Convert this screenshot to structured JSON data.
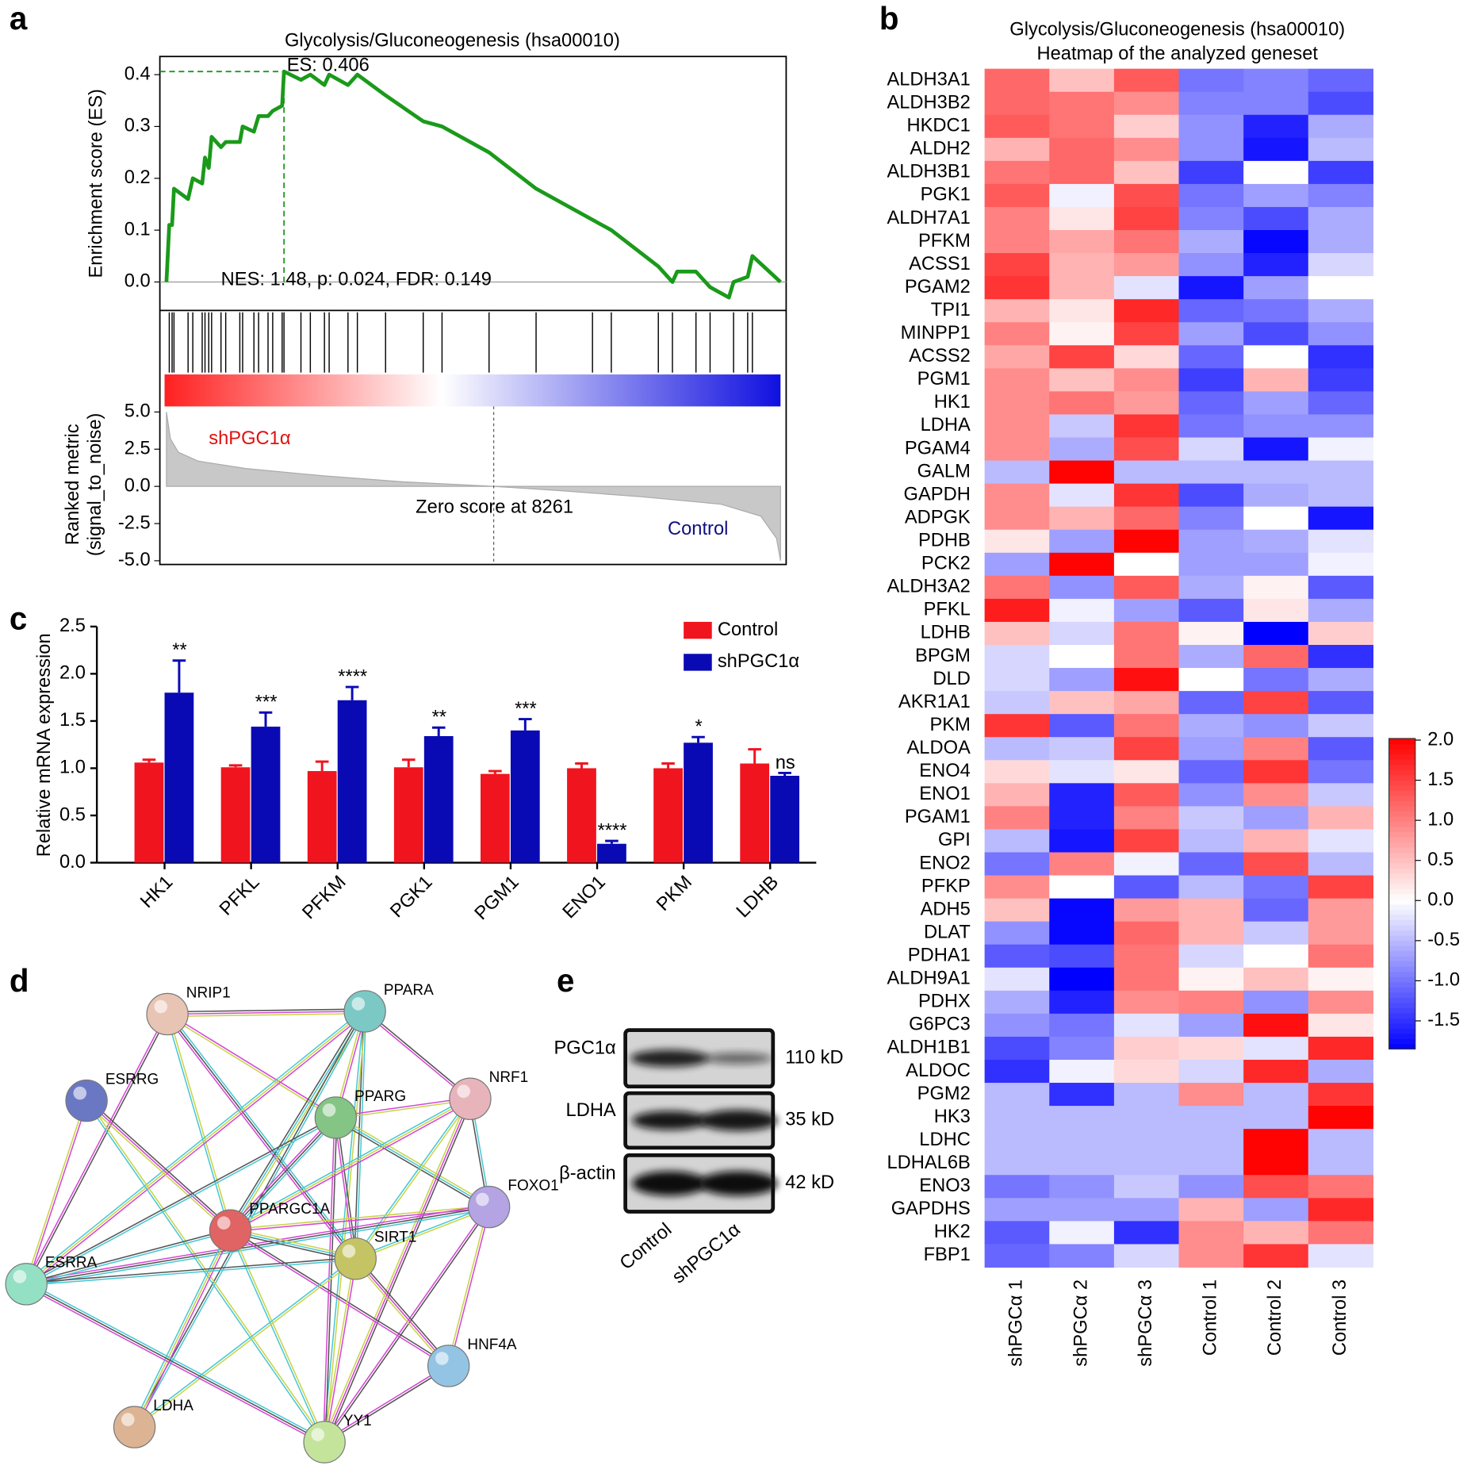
{
  "panels": [
    "a",
    "b",
    "c",
    "d",
    "e"
  ],
  "chart_data": [
    {
      "type": "line",
      "title": "Glycolysis/Gluconeogenesis (hsa00010)",
      "ylabel": "Enrichment score (ES)",
      "color": "#1a9a1a",
      "x": [
        0,
        71,
        142,
        190,
        546,
        665,
        902,
        973,
        1068,
        1140,
        1377,
        1496,
        1852,
        1923,
        2208,
        2326,
        2564,
        2682,
        2920,
        2967,
        3395,
        3632,
        3988,
        4107,
        4582,
        4819,
        5531,
        6481,
        6956,
        8143,
        9330,
        10754,
        11229,
        12416,
        12772,
        12891,
        13366,
        13722,
        14197,
        14315,
        14671,
        14790,
        15500
      ],
      "values": [
        0,
        0.11,
        0.11,
        0.18,
        0.16,
        0.2,
        0.19,
        0.24,
        0.22,
        0.28,
        0.26,
        0.27,
        0.27,
        0.3,
        0.29,
        0.32,
        0.32,
        0.33,
        0.34,
        0.406,
        0.39,
        0.4,
        0.38,
        0.4,
        0.38,
        0.4,
        0.36,
        0.31,
        0.3,
        0.25,
        0.18,
        0.12,
        0.1,
        0.03,
        0,
        0.02,
        0.02,
        -0.01,
        -0.03,
        0,
        0.01,
        0.05,
        0
      ],
      "hits": [
        71,
        142,
        190,
        546,
        665,
        902,
        973,
        1068,
        1140,
        1377,
        1496,
        1852,
        1923,
        2208,
        2326,
        2564,
        2682,
        2920,
        2967,
        3395,
        3632,
        3988,
        4107,
        4582,
        4819,
        5531,
        6481,
        6956,
        8143,
        9330,
        10754,
        11229,
        12416,
        12772,
        13366,
        13722,
        14315,
        14671,
        14790
      ],
      "xlim": [
        0,
        15500
      ],
      "ylim": [
        -0.055,
        0.435
      ],
      "yticks": [
        {
          "value": 0,
          "label": "0.0"
        },
        {
          "value": 0.1,
          "label": "0.1"
        },
        {
          "value": 0.2,
          "label": "0.2"
        },
        {
          "value": 0.3,
          "label": "0.3"
        },
        {
          "value": 0.4,
          "label": "0.4"
        }
      ],
      "annotations": [
        "ES: 0.406",
        "NES: 1.48, p: 0.024, FDR: 0.149"
      ]
    },
    {
      "type": "area",
      "ylabel": [
        "Ranked metric",
        "(signal_to_noise)"
      ],
      "color": "#c8c8c8",
      "x": [
        0,
        100,
        300,
        800,
        2000,
        4000,
        6000,
        8261,
        10000,
        12000,
        14000,
        15000,
        15400,
        15500
      ],
      "values": [
        5.0,
        3.2,
        2.3,
        1.7,
        1.2,
        0.7,
        0.3,
        0,
        -0.3,
        -0.7,
        -1.2,
        -2,
        -3.5,
        -5
      ],
      "zero_score": 8261,
      "xlim": [
        0,
        15500
      ],
      "ylim": [
        -5.25,
        5.5
      ],
      "yticks": [
        {
          "value": 5,
          "label": "5.0"
        },
        {
          "value": 2.5,
          "label": "2.5"
        },
        {
          "value": 0,
          "label": "0.0"
        },
        {
          "value": -2.5,
          "label": "-2.5"
        },
        {
          "value": -5,
          "label": "-5.0"
        }
      ],
      "annotations": [
        "shPGC1α",
        "Zero score at 8261",
        "Control"
      ]
    },
    {
      "type": "heatmap",
      "title": [
        "Glycolysis/Gluconeogenesis (hsa00010)",
        "Heatmap of the analyzed geneset"
      ],
      "rows": [
        "ALDH3A1",
        "ALDH3B2",
        "HKDC1",
        "ALDH2",
        "ALDH3B1",
        "PGK1",
        "ALDH7A1",
        "PFKM",
        "ACSS1",
        "PGAM2",
        "TPI1",
        "MINPP1",
        "ACSS2",
        "PGM1",
        "HK1",
        "LDHA",
        "PGAM4",
        "GALM",
        "GAPDH",
        "ADPGK",
        "PDHB",
        "PCK2",
        "ALDH3A2",
        "PFKL",
        "LDHB",
        "BPGM",
        "DLD",
        "AKR1A1",
        "PKM",
        "ALDOA",
        "ENO4",
        "ENO1",
        "PGAM1",
        "GPI",
        "ENO2",
        "PFKP",
        "ADH5",
        "DLAT",
        "PDHA1",
        "ALDH9A1",
        "PDHX",
        "G6PC3",
        "ALDH1B1",
        "ALDOC",
        "PGM2",
        "HK3",
        "LDHC",
        "LDHAL6B",
        "ENO3",
        "GAPDHS",
        "HK2",
        "FBP1"
      ],
      "columns": [
        "shPGCα 1",
        "shPGCα 2",
        "shPGCα 3",
        "Control 1",
        "Control 2",
        "Control 3"
      ],
      "values": [
        [
          1.2,
          0.5,
          1.3,
          -1.0,
          -0.9,
          -1.1
        ],
        [
          1.2,
          1.1,
          0.9,
          -0.9,
          -0.9,
          -1.3
        ],
        [
          1.3,
          1.1,
          0.4,
          -0.8,
          -1.6,
          -0.6
        ],
        [
          0.6,
          1.2,
          0.9,
          -0.8,
          -1.7,
          -0.5
        ],
        [
          1.1,
          1.2,
          0.5,
          -1.4,
          0.0,
          -1.4
        ],
        [
          1.3,
          -0.1,
          1.4,
          -1.0,
          -0.7,
          -0.9
        ],
        [
          1.0,
          0.2,
          1.5,
          -0.9,
          -1.3,
          -0.6
        ],
        [
          1.0,
          0.7,
          1.1,
          -0.6,
          -1.8,
          -0.6
        ],
        [
          1.5,
          0.6,
          0.8,
          -0.8,
          -1.6,
          -0.3
        ],
        [
          1.6,
          0.6,
          -0.2,
          -1.7,
          -0.7,
          0.0
        ],
        [
          0.6,
          0.2,
          1.7,
          -1.1,
          -1.0,
          -0.6
        ],
        [
          1.0,
          0.1,
          1.5,
          -0.7,
          -1.3,
          -0.8
        ],
        [
          0.7,
          1.5,
          0.3,
          -1.1,
          0.0,
          -1.5
        ],
        [
          0.9,
          0.5,
          0.9,
          -1.4,
          0.6,
          -1.4
        ],
        [
          0.9,
          1.1,
          0.8,
          -1.1,
          -0.7,
          -1.1
        ],
        [
          0.9,
          -0.4,
          1.6,
          -1.0,
          -0.8,
          -0.8
        ],
        [
          0.9,
          -0.6,
          1.4,
          -0.3,
          -1.7,
          -0.1
        ],
        [
          -0.5,
          2.0,
          -0.5,
          -0.5,
          -0.5,
          -0.5
        ],
        [
          0.9,
          -0.2,
          1.6,
          -1.3,
          -0.6,
          -0.5
        ],
        [
          0.9,
          0.6,
          1.2,
          -0.9,
          0.0,
          -1.7
        ],
        [
          0.2,
          -0.7,
          2.0,
          -0.7,
          -0.6,
          -0.2
        ],
        [
          -0.7,
          2.0,
          0.0,
          -0.7,
          -0.7,
          -0.1
        ],
        [
          1.1,
          -0.8,
          1.3,
          -0.6,
          0.1,
          -1.2
        ],
        [
          1.8,
          -0.1,
          -0.7,
          -1.2,
          0.2,
          -0.6
        ],
        [
          0.5,
          -0.3,
          1.1,
          0.1,
          -2.0,
          0.4
        ],
        [
          -0.3,
          0.0,
          1.1,
          -0.6,
          1.2,
          -1.5
        ],
        [
          -0.3,
          -0.7,
          1.9,
          0.0,
          -1.0,
          -0.6
        ],
        [
          -0.4,
          0.5,
          0.7,
          -1.1,
          1.5,
          -1.2
        ],
        [
          1.6,
          -1.2,
          1.1,
          -0.6,
          -0.8,
          -0.4
        ],
        [
          -0.5,
          -0.4,
          1.5,
          -0.7,
          1.0,
          -1.2
        ],
        [
          0.3,
          -0.2,
          0.2,
          -1.1,
          1.6,
          -1.0
        ],
        [
          0.6,
          -1.6,
          1.3,
          -0.8,
          0.9,
          -0.4
        ],
        [
          1.0,
          -1.6,
          1.0,
          -0.4,
          -0.7,
          0.6
        ],
        [
          -0.5,
          -1.7,
          1.5,
          -0.5,
          0.6,
          -0.2
        ],
        [
          -1.0,
          1.0,
          -0.1,
          -1.1,
          1.4,
          -0.5
        ],
        [
          0.9,
          0.0,
          -1.2,
          -0.5,
          -1.0,
          1.5
        ],
        [
          0.5,
          -1.8,
          0.8,
          0.6,
          -1.1,
          0.8
        ],
        [
          -0.8,
          -1.8,
          1.2,
          0.6,
          -0.4,
          0.8
        ],
        [
          -1.2,
          -1.3,
          1.1,
          -0.3,
          0.0,
          1.1
        ],
        [
          -0.2,
          -2.0,
          1.1,
          0.1,
          0.5,
          0.1
        ],
        [
          -0.6,
          -1.6,
          0.9,
          1.0,
          -0.8,
          0.9
        ],
        [
          -0.8,
          -1.0,
          -0.2,
          -0.7,
          1.9,
          0.2
        ],
        [
          -1.3,
          -0.9,
          0.4,
          0.3,
          -0.2,
          1.7
        ],
        [
          -1.5,
          -0.1,
          0.3,
          -0.3,
          1.7,
          -0.6
        ],
        [
          -0.5,
          -1.5,
          -0.5,
          0.9,
          -0.5,
          1.6
        ],
        [
          -0.5,
          -0.5,
          -0.5,
          -0.5,
          -0.5,
          2.0
        ],
        [
          -0.5,
          -0.5,
          -0.5,
          -0.5,
          2.0,
          -0.5
        ],
        [
          -0.5,
          -0.5,
          -0.5,
          -0.5,
          2.0,
          -0.5
        ],
        [
          -1.0,
          -0.8,
          -0.4,
          -0.8,
          1.4,
          1.1
        ],
        [
          -0.7,
          -0.7,
          -0.7,
          0.6,
          -0.7,
          1.7
        ],
        [
          -1.2,
          -0.1,
          -1.5,
          0.9,
          0.6,
          1.1
        ],
        [
          -1.1,
          -0.9,
          -0.3,
          0.9,
          1.6,
          -0.2
        ]
      ],
      "zlim": [
        -1.85,
        2.02
      ],
      "zticks": [
        {
          "value": 2,
          "label": "2.0"
        },
        {
          "value": 1.5,
          "label": "1.5"
        },
        {
          "value": 1,
          "label": "1.0"
        },
        {
          "value": 0.5,
          "label": "0.5"
        },
        {
          "value": 0,
          "label": "0.0"
        },
        {
          "value": -0.5,
          "label": "-0.5"
        },
        {
          "value": -1,
          "label": "-1.0"
        },
        {
          "value": -1.5,
          "label": "-1.5"
        }
      ],
      "colors": [
        "#0000ff",
        "#ffffff",
        "#ff0000"
      ]
    },
    {
      "type": "bar",
      "ylabel": "Relative mRNA expression",
      "categories": [
        "HK1",
        "PFKL",
        "PFKM",
        "PGK1",
        "PGM1",
        "ENO1",
        "PKM",
        "LDHB"
      ],
      "series": [
        {
          "name": "Control",
          "color": "#f0141e",
          "values": [
            1.06,
            1.01,
            0.97,
            1.01,
            0.94,
            1.0,
            1.0,
            1.05
          ],
          "errors": [
            0.03,
            0.02,
            0.1,
            0.08,
            0.03,
            0.05,
            0.05,
            0.15
          ]
        },
        {
          "name": "shPGC1α",
          "color": "#0a0ab4",
          "values": [
            1.8,
            1.44,
            1.72,
            1.34,
            1.4,
            0.2,
            1.27,
            0.92
          ],
          "errors": [
            0.34,
            0.15,
            0.14,
            0.09,
            0.12,
            0.03,
            0.06,
            0.03
          ]
        }
      ],
      "annotations": [
        "**",
        "***",
        "****",
        "**",
        "***",
        "****",
        "*",
        "ns"
      ],
      "ylim": [
        0,
        2.5
      ],
      "yticks": [
        {
          "value": 0,
          "label": "0.0"
        },
        {
          "value": 0.5,
          "label": "0.5"
        },
        {
          "value": 1,
          "label": "1.0"
        },
        {
          "value": 1.5,
          "label": "1.5"
        },
        {
          "value": 2,
          "label": "2.0"
        },
        {
          "value": 2.5,
          "label": "2.5"
        }
      ],
      "legend": "upper right"
    }
  ],
  "network": {
    "nodes": [
      "NRIP1",
      "PPARA",
      "ESRRG",
      "PPARG",
      "NRF1",
      "FOXO1",
      "PPARGC1A",
      "SIRT1",
      "ESRRA",
      "HNF4A",
      "LDHA",
      "YY1"
    ]
  },
  "blot": {
    "rows": [
      "PGC1α",
      "LDHA",
      "β-actin"
    ],
    "sizes": [
      "110 kD",
      "35 kD",
      "42 kD"
    ],
    "lanes": [
      "Control",
      "shPGC1α"
    ]
  }
}
